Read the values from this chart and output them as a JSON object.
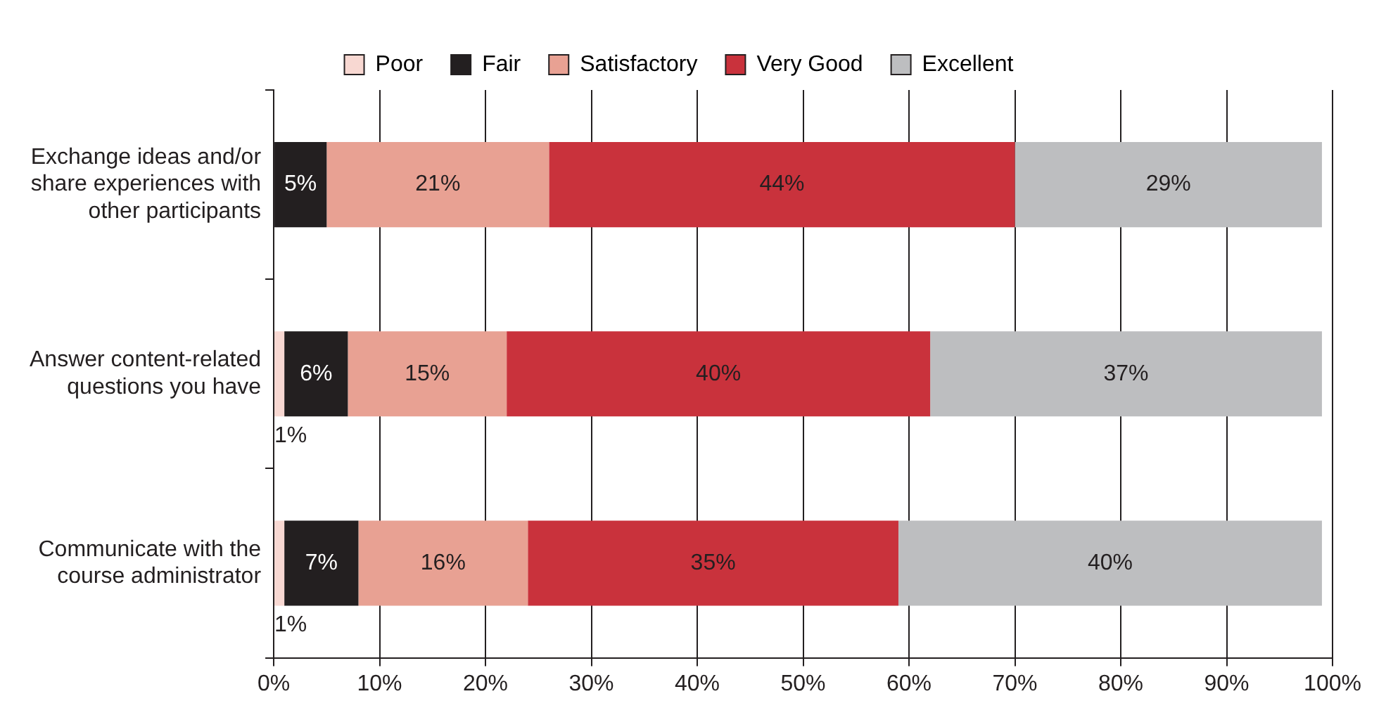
{
  "chart_data": {
    "type": "bar",
    "orientation": "horizontal",
    "stacked": true,
    "categories": [
      "Exchange ideas and/or share experiences with other participants",
      "Answer content-related questions you have",
      "Communicate with the course administrator"
    ],
    "series": [
      {
        "name": "Poor",
        "color": "#f8d8d2",
        "values": [
          null,
          1,
          1
        ],
        "value_labels": [
          null,
          "1%",
          "1%"
        ]
      },
      {
        "name": "Fair",
        "color": "#231f20",
        "values": [
          5,
          6,
          7
        ],
        "value_labels": [
          "5%",
          "6%",
          "7%"
        ]
      },
      {
        "name": "Satisfactory",
        "color": "#e8a193",
        "values": [
          21,
          15,
          16
        ],
        "value_labels": [
          "21%",
          "15%",
          "16%"
        ]
      },
      {
        "name": "Very Good",
        "color": "#c9323c",
        "values": [
          44,
          40,
          35
        ],
        "value_labels": [
          "44%",
          "40%",
          "35%"
        ]
      },
      {
        "name": "Excellent",
        "color": "#bdbec0",
        "values": [
          29,
          37,
          40
        ],
        "value_labels": [
          "29%",
          "37%",
          "40%"
        ]
      }
    ],
    "xlim": [
      0,
      100
    ],
    "xticks": [
      {
        "value": 0,
        "label": "0%"
      },
      {
        "value": 10,
        "label": "10%"
      },
      {
        "value": 20,
        "label": "20%"
      },
      {
        "value": 30,
        "label": "30%"
      },
      {
        "value": 40,
        "label": "40%"
      },
      {
        "value": 50,
        "label": "50%"
      },
      {
        "value": 60,
        "label": "60%"
      },
      {
        "value": 70,
        "label": "70%"
      },
      {
        "value": 80,
        "label": "80%"
      },
      {
        "value": 90,
        "label": "90%"
      },
      {
        "value": 100,
        "label": "100%"
      }
    ],
    "grid": "x",
    "legend": "top"
  }
}
